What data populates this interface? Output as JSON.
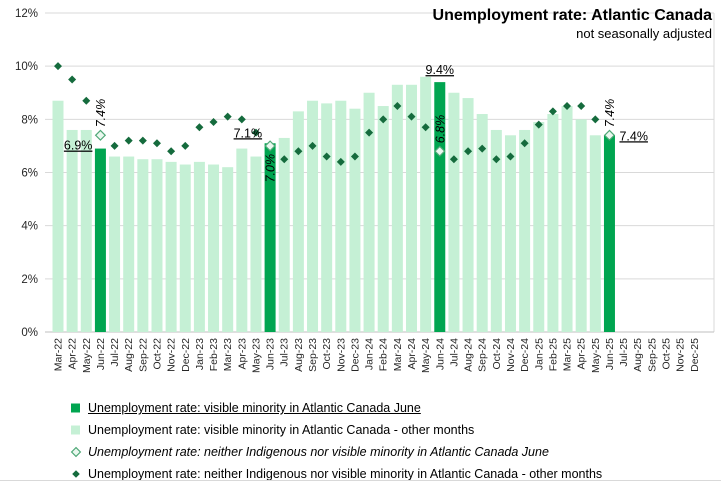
{
  "chart_data": {
    "type": "bar",
    "subtype": "combo bar + scatter (diamond markers)",
    "title": "Unemployment rate: Atlantic Canada",
    "subtitle": "not seasonally adjusted",
    "grid": "horizontal",
    "legend_position": "bottom-left",
    "y_axis": {
      "min": 0,
      "max": 12,
      "step": 2,
      "tick_labels": [
        "0%",
        "2%",
        "4%",
        "6%",
        "8%",
        "10%",
        "12%"
      ]
    },
    "categories": [
      "Mar-22",
      "Apr-22",
      "May-22",
      "Jun-22",
      "Jul-22",
      "Aug-22",
      "Sep-22",
      "Oct-22",
      "Nov-22",
      "Dec-22",
      "Jan-23",
      "Feb-23",
      "Mar-23",
      "Apr-23",
      "May-23",
      "Jun-23",
      "Jul-23",
      "Aug-23",
      "Sep-23",
      "Oct-23",
      "Nov-23",
      "Dec-23",
      "Jan-24",
      "Feb-24",
      "Mar-24",
      "Apr-24",
      "May-24",
      "Jun-24",
      "Jul-24",
      "Aug-24",
      "Sep-24",
      "Oct-24",
      "Nov-24",
      "Dec-24",
      "Jan-25",
      "Feb-25",
      "Mar-25",
      "Apr-25",
      "May-25",
      "Jun-25",
      "Jul-25",
      "Aug-25",
      "Sep-25",
      "Oct-25",
      "Nov-25",
      "Dec-25"
    ],
    "series": [
      {
        "name": "Unemployment rate: visible minority in Atlantic Canada",
        "type": "bar",
        "values": [
          8.7,
          7.6,
          7.6,
          6.9,
          6.6,
          6.6,
          6.5,
          6.5,
          6.4,
          6.3,
          6.4,
          6.3,
          6.2,
          6.9,
          6.6,
          7.1,
          7.3,
          8.3,
          8.7,
          8.6,
          8.7,
          8.4,
          9.0,
          8.5,
          9.3,
          9.3,
          9.6,
          9.4,
          9.0,
          8.8,
          8.2,
          7.6,
          7.4,
          7.6,
          7.9,
          8.2,
          8.5,
          8.0,
          7.4,
          7.4,
          null,
          null,
          null,
          null,
          null,
          null
        ]
      },
      {
        "name": "Unemployment rate: neither Indigenous nor visible minority in Atlantic Canada",
        "type": "scatter",
        "marker": "diamond",
        "values": [
          10.0,
          9.5,
          8.7,
          7.4,
          7.0,
          7.2,
          7.2,
          7.1,
          6.8,
          7.0,
          7.7,
          7.9,
          8.1,
          8.0,
          7.5,
          7.0,
          6.5,
          6.8,
          7.0,
          6.6,
          6.4,
          6.6,
          7.5,
          8.0,
          8.5,
          8.1,
          7.7,
          6.8,
          6.5,
          6.8,
          6.9,
          6.5,
          6.6,
          7.1,
          7.8,
          8.3,
          8.5,
          8.5,
          8.0,
          7.4,
          null,
          null,
          null,
          null,
          null,
          null
        ]
      }
    ],
    "june_highlight_months": [
      "Jun-22",
      "Jun-23",
      "Jun-24",
      "Jun-25"
    ],
    "annotations": {
      "bar_labels": [
        {
          "month": "Jun-22",
          "text": "6.9%",
          "placement": "left",
          "dy": 1
        },
        {
          "month": "Jun-23",
          "text": "7.1%",
          "placement": "left",
          "dy": -6
        },
        {
          "month": "Jun-24",
          "text": "9.4%",
          "placement": "above",
          "dy": -8
        },
        {
          "month": "Jun-25",
          "text": "7.4%",
          "placement": "right",
          "dy": 5
        }
      ],
      "diamond_labels": [
        {
          "month": "Jun-22",
          "text": "7.4%",
          "position": "above"
        },
        {
          "month": "Jun-23",
          "text": "7.0%",
          "position": "below"
        },
        {
          "month": "Jun-24",
          "text": "6.8%",
          "position": "above"
        },
        {
          "month": "Jun-25",
          "text": "7.4%",
          "position": "above"
        }
      ]
    },
    "legend": [
      {
        "name": "legend-item-visible-minority-june",
        "marker": "square-filled-dark",
        "label": "Unemployment rate: visible minority in Atlantic Canada June",
        "text_style": "underline"
      },
      {
        "name": "legend-item-visible-minority-other",
        "marker": "square-filled-light",
        "label": "Unemployment rate: visible minority in Atlantic Canada - other months",
        "text_style": "normal"
      },
      {
        "name": "legend-item-neither-june",
        "marker": "diamond-open",
        "label": "Unemployment rate: neither Indigenous nor visible minority in Atlantic Canada June",
        "text_style": "italic"
      },
      {
        "name": "legend-item-neither-other",
        "marker": "diamond-filled",
        "label": "Unemployment rate: neither Indigenous nor visible minority in Atlantic Canada - other months",
        "text_style": "normal"
      }
    ],
    "colors": {
      "bar_june": "#00A550",
      "bar_other": "#C5F0D5",
      "diamond_june_fill": "#EAF8EF",
      "diamond_june_stroke": "#4FA877",
      "diamond_other": "#156B3D",
      "gridline": "#D9D9D9",
      "axis_line": "#BFBFBF",
      "text": "#000000",
      "tick_text": "#262626"
    }
  }
}
